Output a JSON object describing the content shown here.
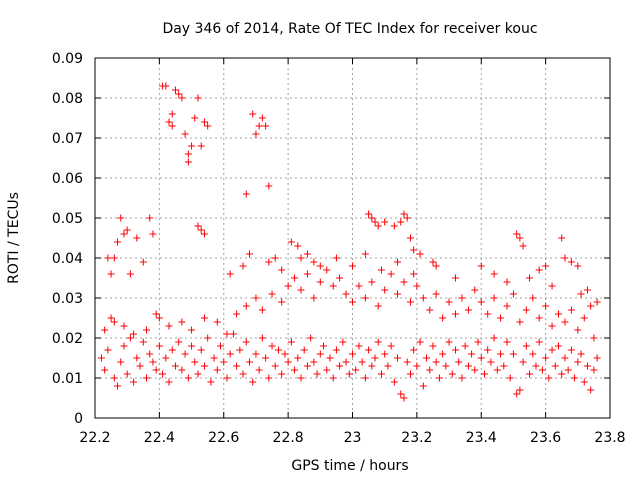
{
  "chart_data": {
    "type": "scatter",
    "title": "Day 346 of 2014, Rate Of TEC Index for receiver kouc",
    "xlabel": "GPS time / hours",
    "ylabel": "ROTI / TECUs",
    "xlim": [
      22.2,
      23.8
    ],
    "ylim": [
      0,
      0.09
    ],
    "xticks": [
      "22.2",
      "22.4",
      "22.6",
      "22.8",
      "23",
      "23.2",
      "23.4",
      "23.6",
      "23.8"
    ],
    "yticks": [
      "0",
      "0.01",
      "0.02",
      "0.03",
      "0.04",
      "0.05",
      "0.06",
      "0.07",
      "0.08",
      "0.09"
    ],
    "grid": true,
    "marker": "+",
    "marker_color": "#ff0000",
    "series": [
      {
        "name": "ROTI",
        "points": [
          [
            22.24,
            0.04
          ],
          [
            22.25,
            0.036
          ],
          [
            22.25,
            0.025
          ],
          [
            22.26,
            0.04
          ],
          [
            22.27,
            0.044
          ],
          [
            22.28,
            0.05
          ],
          [
            22.29,
            0.046
          ],
          [
            22.3,
            0.047
          ],
          [
            22.31,
            0.036
          ],
          [
            22.33,
            0.045
          ],
          [
            22.35,
            0.039
          ],
          [
            22.37,
            0.05
          ],
          [
            22.38,
            0.046
          ],
          [
            22.39,
            0.026
          ],
          [
            22.41,
            0.083
          ],
          [
            22.42,
            0.083
          ],
          [
            22.43,
            0.074
          ],
          [
            22.44,
            0.073
          ],
          [
            22.44,
            0.076
          ],
          [
            22.45,
            0.082
          ],
          [
            22.46,
            0.081
          ],
          [
            22.47,
            0.08
          ],
          [
            22.48,
            0.071
          ],
          [
            22.49,
            0.064
          ],
          [
            22.49,
            0.066
          ],
          [
            22.5,
            0.068
          ],
          [
            22.51,
            0.075
          ],
          [
            22.52,
            0.08
          ],
          [
            22.53,
            0.068
          ],
          [
            22.54,
            0.074
          ],
          [
            22.55,
            0.073
          ],
          [
            22.52,
            0.048
          ],
          [
            22.53,
            0.047
          ],
          [
            22.54,
            0.046
          ],
          [
            22.67,
            0.056
          ],
          [
            22.69,
            0.076
          ],
          [
            22.7,
            0.071
          ],
          [
            22.71,
            0.073
          ],
          [
            22.72,
            0.075
          ],
          [
            22.73,
            0.073
          ],
          [
            22.74,
            0.058
          ],
          [
            22.68,
            0.041
          ],
          [
            22.76,
            0.04
          ],
          [
            22.81,
            0.044
          ],
          [
            22.83,
            0.043
          ],
          [
            22.86,
            0.041
          ],
          [
            22.88,
            0.039
          ],
          [
            23.05,
            0.051
          ],
          [
            23.06,
            0.05
          ],
          [
            23.07,
            0.049
          ],
          [
            23.08,
            0.048
          ],
          [
            23.1,
            0.049
          ],
          [
            23.13,
            0.048
          ],
          [
            23.15,
            0.049
          ],
          [
            23.16,
            0.051
          ],
          [
            23.17,
            0.05
          ],
          [
            23.18,
            0.045
          ],
          [
            23.19,
            0.042
          ],
          [
            23.21,
            0.041
          ],
          [
            23.25,
            0.039
          ],
          [
            23.51,
            0.046
          ],
          [
            23.52,
            0.045
          ],
          [
            23.53,
            0.043
          ],
          [
            23.58,
            0.037
          ],
          [
            23.6,
            0.038
          ],
          [
            23.65,
            0.045
          ],
          [
            23.66,
            0.04
          ],
          [
            23.68,
            0.039
          ],
          [
            23.7,
            0.038
          ],
          [
            23.73,
            0.032
          ],
          [
            23.76,
            0.029
          ],
          [
            23.75,
            0.02
          ],
          [
            22.22,
            0.015
          ],
          [
            22.23,
            0.012
          ],
          [
            22.24,
            0.017
          ],
          [
            22.26,
            0.01
          ],
          [
            22.27,
            0.008
          ],
          [
            22.28,
            0.014
          ],
          [
            22.29,
            0.018
          ],
          [
            22.3,
            0.011
          ],
          [
            22.31,
            0.02
          ],
          [
            22.32,
            0.009
          ],
          [
            22.33,
            0.015
          ],
          [
            22.34,
            0.013
          ],
          [
            22.35,
            0.019
          ],
          [
            22.36,
            0.01
          ],
          [
            22.37,
            0.016
          ],
          [
            22.38,
            0.014
          ],
          [
            22.39,
            0.012
          ],
          [
            22.4,
            0.018
          ],
          [
            22.41,
            0.011
          ],
          [
            22.42,
            0.015
          ],
          [
            22.43,
            0.009
          ],
          [
            22.44,
            0.017
          ],
          [
            22.45,
            0.013
          ],
          [
            22.46,
            0.019
          ],
          [
            22.47,
            0.012
          ],
          [
            22.48,
            0.016
          ],
          [
            22.49,
            0.01
          ],
          [
            22.5,
            0.018
          ],
          [
            22.51,
            0.014
          ],
          [
            22.52,
            0.011
          ],
          [
            22.53,
            0.017
          ],
          [
            22.54,
            0.013
          ],
          [
            22.55,
            0.02
          ],
          [
            22.56,
            0.009
          ],
          [
            22.57,
            0.015
          ],
          [
            22.58,
            0.012
          ],
          [
            22.59,
            0.018
          ],
          [
            22.6,
            0.014
          ],
          [
            22.61,
            0.01
          ],
          [
            22.62,
            0.016
          ],
          [
            22.63,
            0.021
          ],
          [
            22.64,
            0.013
          ],
          [
            22.65,
            0.017
          ],
          [
            22.66,
            0.011
          ],
          [
            22.67,
            0.019
          ],
          [
            22.68,
            0.014
          ],
          [
            22.69,
            0.009
          ],
          [
            22.7,
            0.016
          ],
          [
            22.71,
            0.012
          ],
          [
            22.72,
            0.02
          ],
          [
            22.73,
            0.015
          ],
          [
            22.74,
            0.01
          ],
          [
            22.75,
            0.018
          ],
          [
            22.76,
            0.013
          ],
          [
            22.77,
            0.017
          ],
          [
            22.78,
            0.011
          ],
          [
            22.79,
            0.016
          ],
          [
            22.8,
            0.014
          ],
          [
            22.81,
            0.019
          ],
          [
            22.82,
            0.012
          ],
          [
            22.83,
            0.015
          ],
          [
            22.84,
            0.01
          ],
          [
            22.85,
            0.017
          ],
          [
            22.86,
            0.013
          ],
          [
            22.87,
            0.02
          ],
          [
            22.88,
            0.014
          ],
          [
            22.89,
            0.011
          ],
          [
            22.9,
            0.016
          ],
          [
            22.91,
            0.018
          ],
          [
            22.92,
            0.012
          ],
          [
            22.93,
            0.015
          ],
          [
            22.94,
            0.01
          ],
          [
            22.95,
            0.017
          ],
          [
            22.96,
            0.013
          ],
          [
            22.97,
            0.019
          ],
          [
            22.98,
            0.014
          ],
          [
            22.99,
            0.011
          ],
          [
            23.0,
            0.016
          ],
          [
            23.01,
            0.012
          ],
          [
            23.02,
            0.018
          ],
          [
            23.03,
            0.014
          ],
          [
            23.04,
            0.01
          ],
          [
            23.05,
            0.017
          ],
          [
            23.06,
            0.013
          ],
          [
            23.07,
            0.015
          ],
          [
            23.08,
            0.019
          ],
          [
            23.09,
            0.011
          ],
          [
            23.1,
            0.016
          ],
          [
            23.11,
            0.013
          ],
          [
            23.12,
            0.018
          ],
          [
            23.13,
            0.009
          ],
          [
            23.14,
            0.015
          ],
          [
            23.15,
            0.006
          ],
          [
            23.16,
            0.005
          ],
          [
            23.17,
            0.014
          ],
          [
            23.18,
            0.011
          ],
          [
            23.19,
            0.017
          ],
          [
            23.2,
            0.013
          ],
          [
            23.21,
            0.019
          ],
          [
            23.22,
            0.008
          ],
          [
            23.23,
            0.015
          ],
          [
            23.24,
            0.012
          ],
          [
            23.25,
            0.018
          ],
          [
            23.26,
            0.014
          ],
          [
            23.27,
            0.01
          ],
          [
            23.28,
            0.016
          ],
          [
            23.29,
            0.013
          ],
          [
            23.3,
            0.019
          ],
          [
            23.31,
            0.011
          ],
          [
            23.32,
            0.017
          ],
          [
            23.33,
            0.014
          ],
          [
            23.34,
            0.01
          ],
          [
            23.35,
            0.018
          ],
          [
            23.36,
            0.013
          ],
          [
            23.37,
            0.016
          ],
          [
            23.38,
            0.012
          ],
          [
            23.39,
            0.019
          ],
          [
            23.4,
            0.015
          ],
          [
            23.41,
            0.011
          ],
          [
            23.42,
            0.017
          ],
          [
            23.43,
            0.014
          ],
          [
            23.44,
            0.02
          ],
          [
            23.45,
            0.012
          ],
          [
            23.46,
            0.016
          ],
          [
            23.47,
            0.013
          ],
          [
            23.48,
            0.019
          ],
          [
            23.49,
            0.01
          ],
          [
            23.5,
            0.016
          ],
          [
            23.51,
            0.006
          ],
          [
            23.52,
            0.007
          ],
          [
            23.53,
            0.014
          ],
          [
            23.54,
            0.018
          ],
          [
            23.55,
            0.011
          ],
          [
            23.56,
            0.016
          ],
          [
            23.57,
            0.013
          ],
          [
            23.58,
            0.019
          ],
          [
            23.59,
            0.012
          ],
          [
            23.6,
            0.015
          ],
          [
            23.61,
            0.01
          ],
          [
            23.62,
            0.017
          ],
          [
            23.63,
            0.013
          ],
          [
            23.64,
            0.018
          ],
          [
            23.65,
            0.011
          ],
          [
            23.66,
            0.015
          ],
          [
            23.67,
            0.012
          ],
          [
            23.68,
            0.017
          ],
          [
            23.69,
            0.01
          ],
          [
            23.7,
            0.014
          ],
          [
            23.71,
            0.016
          ],
          [
            23.72,
            0.009
          ],
          [
            23.73,
            0.013
          ],
          [
            23.74,
            0.007
          ],
          [
            23.75,
            0.012
          ],
          [
            23.76,
            0.015
          ],
          [
            22.23,
            0.022
          ],
          [
            22.26,
            0.024
          ],
          [
            22.29,
            0.023
          ],
          [
            22.32,
            0.021
          ],
          [
            22.36,
            0.022
          ],
          [
            22.4,
            0.025
          ],
          [
            22.43,
            0.023
          ],
          [
            22.47,
            0.024
          ],
          [
            22.5,
            0.022
          ],
          [
            22.54,
            0.025
          ],
          [
            22.58,
            0.024
          ],
          [
            22.61,
            0.021
          ],
          [
            22.64,
            0.026
          ],
          [
            22.67,
            0.028
          ],
          [
            22.7,
            0.03
          ],
          [
            22.72,
            0.027
          ],
          [
            22.75,
            0.031
          ],
          [
            22.78,
            0.029
          ],
          [
            22.8,
            0.033
          ],
          [
            22.82,
            0.035
          ],
          [
            22.84,
            0.032
          ],
          [
            22.86,
            0.036
          ],
          [
            22.88,
            0.03
          ],
          [
            22.9,
            0.034
          ],
          [
            22.92,
            0.037
          ],
          [
            22.94,
            0.033
          ],
          [
            22.96,
            0.035
          ],
          [
            22.98,
            0.031
          ],
          [
            23.0,
            0.029
          ],
          [
            23.02,
            0.033
          ],
          [
            23.04,
            0.03
          ],
          [
            23.06,
            0.034
          ],
          [
            23.08,
            0.028
          ],
          [
            23.1,
            0.032
          ],
          [
            23.12,
            0.036
          ],
          [
            23.14,
            0.031
          ],
          [
            23.16,
            0.034
          ],
          [
            23.18,
            0.029
          ],
          [
            23.2,
            0.033
          ],
          [
            23.22,
            0.03
          ],
          [
            23.24,
            0.027
          ],
          [
            23.26,
            0.031
          ],
          [
            23.28,
            0.025
          ],
          [
            23.3,
            0.029
          ],
          [
            23.32,
            0.026
          ],
          [
            23.34,
            0.03
          ],
          [
            23.36,
            0.027
          ],
          [
            23.38,
            0.032
          ],
          [
            23.4,
            0.029
          ],
          [
            23.42,
            0.026
          ],
          [
            23.44,
            0.03
          ],
          [
            23.46,
            0.025
          ],
          [
            23.48,
            0.028
          ],
          [
            23.5,
            0.031
          ],
          [
            23.52,
            0.024
          ],
          [
            23.54,
            0.027
          ],
          [
            23.56,
            0.03
          ],
          [
            23.58,
            0.025
          ],
          [
            23.6,
            0.028
          ],
          [
            23.62,
            0.023
          ],
          [
            23.64,
            0.026
          ],
          [
            23.66,
            0.024
          ],
          [
            23.68,
            0.027
          ],
          [
            23.7,
            0.022
          ],
          [
            23.72,
            0.025
          ],
          [
            23.74,
            0.028
          ],
          [
            22.62,
            0.036
          ],
          [
            22.66,
            0.038
          ],
          [
            22.74,
            0.039
          ],
          [
            22.78,
            0.037
          ],
          [
            22.84,
            0.04
          ],
          [
            22.9,
            0.038
          ],
          [
            22.95,
            0.04
          ],
          [
            23.0,
            0.038
          ],
          [
            23.04,
            0.041
          ],
          [
            23.09,
            0.037
          ],
          [
            23.14,
            0.039
          ],
          [
            23.19,
            0.036
          ],
          [
            23.26,
            0.038
          ],
          [
            23.32,
            0.035
          ],
          [
            23.4,
            0.038
          ],
          [
            23.44,
            0.036
          ],
          [
            23.48,
            0.034
          ],
          [
            23.55,
            0.035
          ],
          [
            23.62,
            0.033
          ],
          [
            23.71,
            0.031
          ]
        ]
      }
    ]
  }
}
